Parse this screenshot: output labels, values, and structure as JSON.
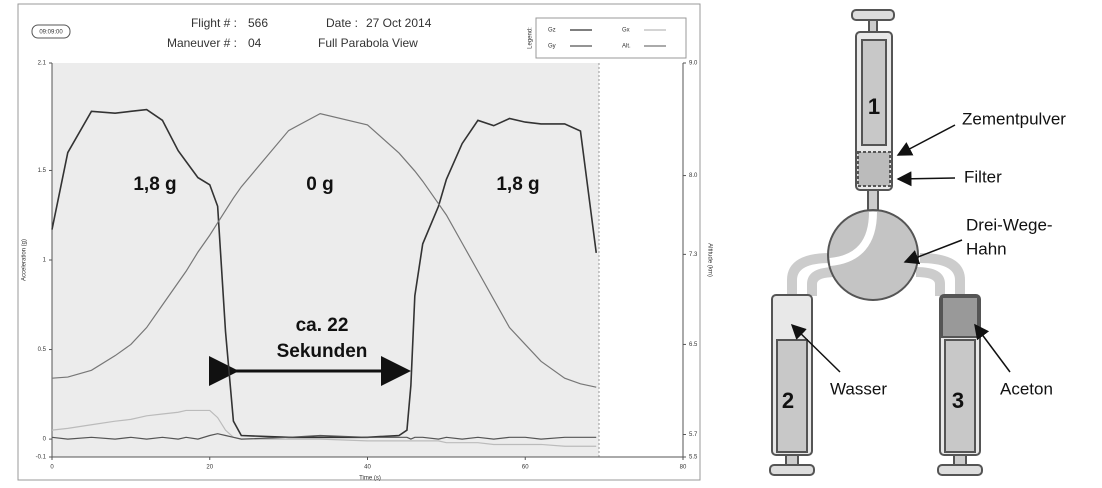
{
  "header": {
    "time": "09:09:00",
    "flight_label": "Flight # :",
    "flight": "566",
    "date_label": "Date :",
    "date": "27 Oct 2014",
    "maneuver_label": "Maneuver # :",
    "maneuver": "04",
    "view": "Full Parabola View",
    "legend_label": "Legend:"
  },
  "chart_data": {
    "type": "line",
    "x_label": "Time (s)",
    "y_label": "Acceleration (g)",
    "y2_label": "Altitude (km)",
    "x": [
      0,
      2,
      5,
      8,
      10,
      12,
      14,
      16,
      17,
      18.5,
      20,
      21,
      22,
      23,
      24,
      30,
      34,
      40,
      44,
      45,
      45.5,
      46,
      47,
      49,
      50,
      52,
      54,
      56,
      58,
      60,
      62,
      65,
      67,
      69
    ],
    "series": [
      {
        "name": "Gz",
        "color": "#333333",
        "values": [
          1.17,
          1.6,
          1.83,
          1.82,
          1.83,
          1.84,
          1.78,
          1.61,
          1.55,
          1.46,
          1.42,
          1.3,
          0.6,
          0.1,
          0.02,
          0.01,
          0.01,
          0.01,
          0.02,
          0.05,
          0.3,
          0.8,
          1.09,
          1.3,
          1.45,
          1.65,
          1.78,
          1.75,
          1.79,
          1.77,
          1.76,
          1.76,
          1.72,
          1.04
        ]
      },
      {
        "name": "Gx",
        "color": "#bbbbbb",
        "values": [
          0.05,
          0.06,
          0.08,
          0.1,
          0.11,
          0.13,
          0.14,
          0.15,
          0.16,
          0.16,
          0.16,
          0.12,
          0.05,
          0.01,
          0,
          0,
          0,
          -0.01,
          -0.01,
          -0.01,
          -0.01,
          -0.01,
          -0.01,
          -0.01,
          -0.02,
          -0.02,
          -0.02,
          -0.03,
          -0.03,
          -0.03,
          -0.03,
          -0.04,
          -0.04,
          -0.04
        ]
      },
      {
        "name": "Gy",
        "color": "#555555",
        "values": [
          0.01,
          0,
          0.01,
          0,
          0.01,
          0,
          0.01,
          0,
          0.01,
          0,
          0.02,
          0.03,
          0.02,
          0.01,
          0,
          0.01,
          0.02,
          0.01,
          0.01,
          0.01,
          0,
          0.01,
          0.01,
          0,
          0.01,
          0,
          0.01,
          0,
          0.01,
          0.01,
          0,
          0.01,
          0.01,
          0.01
        ]
      },
      {
        "name": "Alt.",
        "color": "#777777",
        "axis": "y2",
        "values": [
          6.2,
          6.21,
          6.27,
          6.4,
          6.5,
          6.65,
          6.85,
          7.05,
          7.15,
          7.32,
          7.47,
          7.58,
          7.69,
          7.8,
          7.9,
          8.4,
          8.55,
          8.45,
          8.2,
          8.12,
          8.08,
          8.04,
          7.95,
          7.75,
          7.65,
          7.4,
          7.15,
          6.9,
          6.65,
          6.5,
          6.35,
          6.2,
          6.15,
          6.12
        ]
      }
    ],
    "xlim": [
      0,
      80
    ],
    "xticks": [
      0,
      20,
      40,
      60,
      80
    ],
    "ylim": [
      -0.1,
      2.1
    ],
    "yticks": [
      -0.1,
      0,
      0.5,
      1,
      1.5,
      2.1
    ],
    "y2lim": [
      5.5,
      9.0
    ],
    "y2ticks": [
      5.5,
      5.7,
      6.5,
      7.3,
      {
        "value": 8,
        "label": "8.0"
      },
      {
        "value": 9,
        "label": "9.0"
      }
    ],
    "annotations": [
      "1,8 g",
      "0 g",
      "1,8 g",
      "ca. 22",
      "Sekunden"
    ]
  },
  "diagram": {
    "syringe_1": "1",
    "syringe_2": "2",
    "syringe_3": "3",
    "powder": "Zementpulver",
    "filter": "Filter",
    "valve_line1": "Drei-Wege-",
    "valve_line2": "Hahn",
    "water": "Wasser",
    "acetone": "Aceton"
  }
}
